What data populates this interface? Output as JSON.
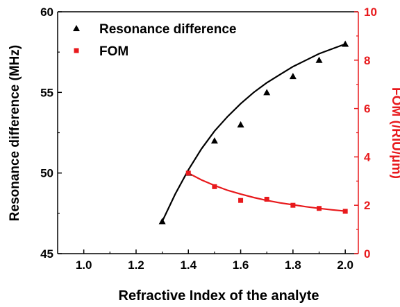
{
  "chart_data": {
    "type": "scatter",
    "xlabel": "Refractive Index of the analyte",
    "ylabel": "Resonance difference (MHz)",
    "y2label": "FOM (/RIU/μm)",
    "xlim": [
      0.9,
      2.05
    ],
    "ylim": [
      45,
      60
    ],
    "y2lim": [
      0,
      10
    ],
    "xticks": [
      "1.0",
      "1.2",
      "1.4",
      "1.6",
      "1.8",
      "2.0"
    ],
    "xtick_values": [
      1.0,
      1.2,
      1.4,
      1.6,
      1.8,
      2.0
    ],
    "yticks": [
      "45",
      "50",
      "55",
      "60"
    ],
    "ytick_values": [
      45,
      50,
      55,
      60
    ],
    "y2ticks": [
      "0",
      "2",
      "4",
      "6",
      "8",
      "10"
    ],
    "y2tick_values": [
      0,
      2,
      4,
      6,
      8,
      10
    ],
    "legend_position": "top-left",
    "series": [
      {
        "name": "Resonance difference",
        "axis": "left",
        "marker": "triangle",
        "color": "#000000",
        "x": [
          1.3,
          1.4,
          1.5,
          1.6,
          1.7,
          1.8,
          1.9,
          2.0
        ],
        "y": [
          47,
          50,
          52,
          53,
          55,
          56,
          57,
          58
        ],
        "fit_x": [
          1.3,
          1.35,
          1.4,
          1.45,
          1.5,
          1.55,
          1.6,
          1.65,
          1.7,
          1.75,
          1.8,
          1.85,
          1.9,
          1.95,
          2.0
        ],
        "fit_y": [
          47.0,
          48.7,
          50.2,
          51.5,
          52.6,
          53.5,
          54.3,
          55.0,
          55.6,
          56.1,
          56.6,
          57.0,
          57.4,
          57.7,
          58.0
        ]
      },
      {
        "name": "FOM",
        "axis": "right",
        "marker": "square",
        "color": "#e8191c",
        "x": [
          1.4,
          1.5,
          1.6,
          1.7,
          1.8,
          1.9,
          2.0
        ],
        "y": [
          3.33,
          2.77,
          2.2,
          2.25,
          2.0,
          1.87,
          1.75
        ],
        "fit_x": [
          1.4,
          1.45,
          1.5,
          1.55,
          1.6,
          1.65,
          1.7,
          1.75,
          1.8,
          1.85,
          1.9,
          1.95,
          2.0
        ],
        "fit_y": [
          3.33,
          3.05,
          2.82,
          2.62,
          2.46,
          2.32,
          2.2,
          2.1,
          2.02,
          1.94,
          1.87,
          1.81,
          1.76
        ]
      }
    ]
  }
}
